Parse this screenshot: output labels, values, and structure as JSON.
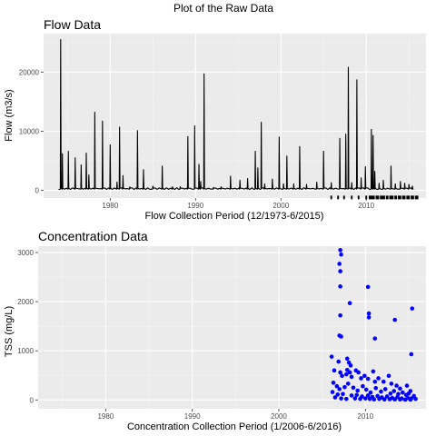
{
  "figure_title": "Plot of the Raw Data",
  "colors": {
    "panel_bg": "#ebebeb",
    "grid_major": "#ffffff",
    "grid_minor": "#f5f5f5",
    "flow_line": "#000000",
    "conc_points": "#0000ff",
    "tick_text": "#4d4d4d"
  },
  "chart_data": [
    {
      "type": "line",
      "title": "Flow Data",
      "xlabel": "Flow Collection Period (12/1973-6/2015)",
      "ylabel": "Flow (m3/s)",
      "xlim": [
        1972.2,
        2017.0
      ],
      "ylim": [
        -1300,
        26500
      ],
      "xticks": [
        1980,
        1990,
        2000,
        2010
      ],
      "yticks": [
        0,
        10000,
        20000
      ],
      "ytick_labels": [
        "0",
        "10000",
        "20000"
      ],
      "grid": true,
      "series": [
        {
          "peaks": [
            [
              1974.2,
              25500
            ],
            [
              1974.4,
              6200
            ],
            [
              1975.1,
              6600
            ],
            [
              1975.9,
              5500
            ],
            [
              1976.6,
              4300
            ],
            [
              1977.2,
              6300
            ],
            [
              1977.5,
              2600
            ],
            [
              1978.2,
              13200
            ],
            [
              1979.1,
              11700
            ],
            [
              1980.0,
              7700
            ],
            [
              1980.8,
              1400
            ],
            [
              1981.1,
              10700
            ],
            [
              1981.5,
              2500
            ],
            [
              1982.3,
              600
            ],
            [
              1983.2,
              10100
            ],
            [
              1983.9,
              3500
            ],
            [
              1985.0,
              700
            ],
            [
              1986.1,
              4100
            ],
            [
              1987.3,
              600
            ],
            [
              1988.2,
              600
            ],
            [
              1989.1,
              9100
            ],
            [
              1989.9,
              10900
            ],
            [
              1990.4,
              4400
            ],
            [
              1990.6,
              1500
            ],
            [
              1991.0,
              19700
            ],
            [
              1992.1,
              500
            ],
            [
              1993.0,
              600
            ],
            [
              1994.1,
              2400
            ],
            [
              1995.2,
              1700
            ],
            [
              1996.1,
              2000
            ],
            [
              1997.0,
              6600
            ],
            [
              1997.3,
              3800
            ],
            [
              1997.7,
              11500
            ],
            [
              1998.1,
              1100
            ],
            [
              1999.0,
              1900
            ],
            [
              1999.8,
              9000
            ],
            [
              2000.3,
              1100
            ],
            [
              2000.7,
              5800
            ],
            [
              2001.5,
              1100
            ],
            [
              2002.2,
              7400
            ],
            [
              2003.0,
              1000
            ],
            [
              2004.2,
              1400
            ],
            [
              2005.0,
              6600
            ],
            [
              2005.9,
              1300
            ],
            [
              2006.9,
              8800
            ],
            [
              2007.6,
              9500
            ],
            [
              2007.9,
              20800
            ],
            [
              2008.3,
              1300
            ],
            [
              2008.9,
              18700
            ],
            [
              2009.4,
              2100
            ],
            [
              2009.9,
              4000
            ],
            [
              2010.6,
              10300
            ],
            [
              2010.8,
              9300
            ],
            [
              2011.0,
              3200
            ],
            [
              2011.5,
              1200
            ],
            [
              2012.0,
              1700
            ],
            [
              2012.9,
              4100
            ],
            [
              2013.4,
              1100
            ],
            [
              2014.0,
              1500
            ],
            [
              2014.5,
              1200
            ],
            [
              2015.0,
              1000
            ],
            [
              2015.4,
              700
            ]
          ],
          "gap_bars": [
            [
              2005.8,
              2006.0
            ],
            [
              2006.6,
              2006.8
            ],
            [
              2007.3,
              2007.5
            ],
            [
              2008.2,
              2008.4
            ],
            [
              2009.0,
              2009.2
            ],
            [
              2009.9,
              2010.1
            ],
            [
              2010.3,
              2011.0
            ],
            [
              2011.1,
              2011.5
            ],
            [
              2011.6,
              2012.2
            ],
            [
              2012.3,
              2012.6
            ],
            [
              2012.7,
              2013.2
            ],
            [
              2013.3,
              2013.6
            ],
            [
              2013.7,
              2014.1
            ],
            [
              2014.2,
              2014.6
            ],
            [
              2014.7,
              2015.1
            ],
            [
              2015.2,
              2015.6
            ],
            [
              2015.7,
              2016.1
            ]
          ]
        }
      ]
    },
    {
      "type": "scatter",
      "title": "Concentration Data",
      "xlabel": "Concentration Collection Period (1/2006-6/2016)",
      "ylabel": "TSS (mg/L)",
      "xlim": [
        1972.2,
        2017.0
      ],
      "ylim": [
        -180,
        3130
      ],
      "xticks": [
        1980,
        1990,
        2000,
        2010
      ],
      "yticks": [
        0,
        1000,
        2000,
        3000
      ],
      "ytick_labels": [
        "0",
        "1000",
        "2000",
        "3000"
      ],
      "grid": true,
      "series": [
        {
          "points": [
            [
              2007.1,
              3050
            ],
            [
              2007.2,
              2960
            ],
            [
              2007.0,
              2770
            ],
            [
              2007.1,
              2620
            ],
            [
              2007.1,
              2310
            ],
            [
              2008.2,
              1970
            ],
            [
              2010.3,
              2300
            ],
            [
              2007.1,
              1720
            ],
            [
              2010.4,
              1760
            ],
            [
              2010.4,
              1680
            ],
            [
              2013.4,
              1630
            ],
            [
              2015.4,
              1860
            ],
            [
              2007.0,
              1310
            ],
            [
              2007.2,
              1290
            ],
            [
              2011.1,
              1250
            ],
            [
              2015.3,
              930
            ],
            [
              2006.1,
              880
            ],
            [
              2006.4,
              600
            ],
            [
              2006.9,
              780
            ],
            [
              2007.1,
              560
            ],
            [
              2007.3,
              490
            ],
            [
              2007.9,
              840
            ],
            [
              2008.1,
              760
            ],
            [
              2008.3,
              700
            ],
            [
              2007.9,
              610
            ],
            [
              2008.2,
              560
            ],
            [
              2007.8,
              520
            ],
            [
              2008.4,
              470
            ],
            [
              2008.9,
              600
            ],
            [
              2009.2,
              560
            ],
            [
              2009.5,
              440
            ],
            [
              2009.9,
              490
            ],
            [
              2010.3,
              430
            ],
            [
              2010.9,
              580
            ],
            [
              2011.1,
              370
            ],
            [
              2011.5,
              440
            ],
            [
              2012.1,
              370
            ],
            [
              2012.7,
              490
            ],
            [
              2013.0,
              330
            ],
            [
              2013.6,
              290
            ],
            [
              2014.0,
              230
            ],
            [
              2014.8,
              290
            ],
            [
              2015.2,
              180
            ],
            [
              2006.3,
              350
            ],
            [
              2006.7,
              280
            ],
            [
              2007.0,
              220
            ],
            [
              2007.6,
              260
            ],
            [
              2008.0,
              330
            ],
            [
              2008.6,
              250
            ],
            [
              2009.1,
              190
            ],
            [
              2009.7,
              280
            ],
            [
              2010.1,
              210
            ],
            [
              2010.6,
              150
            ],
            [
              2011.2,
              240
            ],
            [
              2011.8,
              170
            ],
            [
              2012.3,
              220
            ],
            [
              2012.9,
              130
            ],
            [
              2013.3,
              180
            ],
            [
              2013.8,
              120
            ],
            [
              2014.3,
              150
            ],
            [
              2014.7,
              100
            ],
            [
              2015.0,
              130
            ],
            [
              2015.6,
              80
            ],
            [
              2006.2,
              160
            ],
            [
              2006.8,
              110
            ],
            [
              2007.4,
              120
            ],
            [
              2008.4,
              90
            ],
            [
              2009.0,
              100
            ],
            [
              2009.6,
              70
            ],
            [
              2010.3,
              90
            ],
            [
              2010.8,
              60
            ],
            [
              2011.4,
              80
            ],
            [
              2011.9,
              50
            ],
            [
              2012.5,
              70
            ],
            [
              2013.1,
              40
            ],
            [
              2013.7,
              60
            ],
            [
              2014.2,
              30
            ],
            [
              2014.9,
              40
            ],
            [
              2015.3,
              30
            ],
            [
              2015.8,
              20
            ],
            [
              2006.5,
              50
            ],
            [
              2007.2,
              30
            ],
            [
              2007.8,
              20
            ],
            [
              2008.8,
              30
            ],
            [
              2009.4,
              20
            ],
            [
              2010.0,
              30
            ],
            [
              2010.5,
              20
            ],
            [
              2011.0,
              10
            ],
            [
              2011.6,
              20
            ],
            [
              2012.2,
              10
            ],
            [
              2012.8,
              15
            ],
            [
              2013.4,
              10
            ],
            [
              2014.0,
              10
            ],
            [
              2014.6,
              5
            ],
            [
              2015.2,
              5
            ]
          ]
        }
      ]
    }
  ]
}
